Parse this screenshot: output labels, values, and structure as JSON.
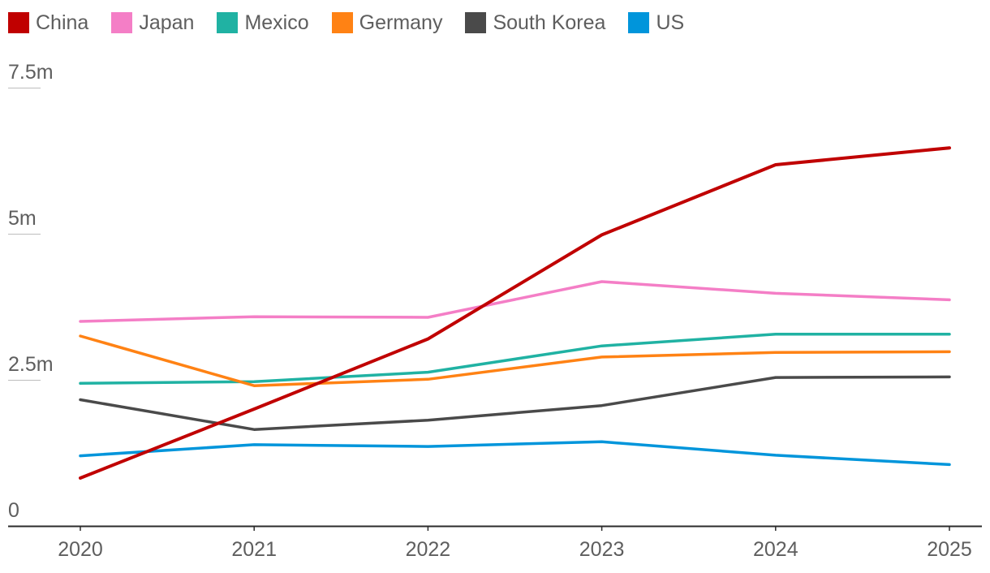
{
  "chart_data": {
    "type": "line",
    "title": "",
    "xlabel": "",
    "ylabel": "",
    "x": [
      "2020",
      "2021",
      "2022",
      "2023",
      "2024",
      "2025"
    ],
    "ylim": [
      0,
      7.5
    ],
    "yticks": [
      {
        "value": 0,
        "label": "0"
      },
      {
        "value": 2.5,
        "label": "2.5m"
      },
      {
        "value": 5,
        "label": "5m"
      },
      {
        "value": 7.5,
        "label": "7.5m"
      }
    ],
    "grid": false,
    "legend_position": "top-left",
    "series": [
      {
        "name": "China",
        "color": "#c00000",
        "values": [
          0.82,
          2.0,
          3.2,
          4.98,
          6.18,
          6.47
        ]
      },
      {
        "name": "Japan",
        "color": "#f47ec6",
        "values": [
          3.5,
          3.58,
          3.57,
          4.18,
          3.98,
          3.87
        ]
      },
      {
        "name": "Mexico",
        "color": "#20b2a3",
        "values": [
          2.44,
          2.47,
          2.63,
          3.08,
          3.28,
          3.28
        ]
      },
      {
        "name": "Germany",
        "color": "#ff8214",
        "values": [
          3.25,
          2.4,
          2.51,
          2.89,
          2.97,
          2.98
        ]
      },
      {
        "name": "South Korea",
        "color": "#4a4a4a",
        "values": [
          2.16,
          1.65,
          1.81,
          2.06,
          2.54,
          2.55
        ]
      },
      {
        "name": "US",
        "color": "#0095db",
        "values": [
          1.2,
          1.39,
          1.36,
          1.44,
          1.21,
          1.05
        ]
      }
    ]
  }
}
